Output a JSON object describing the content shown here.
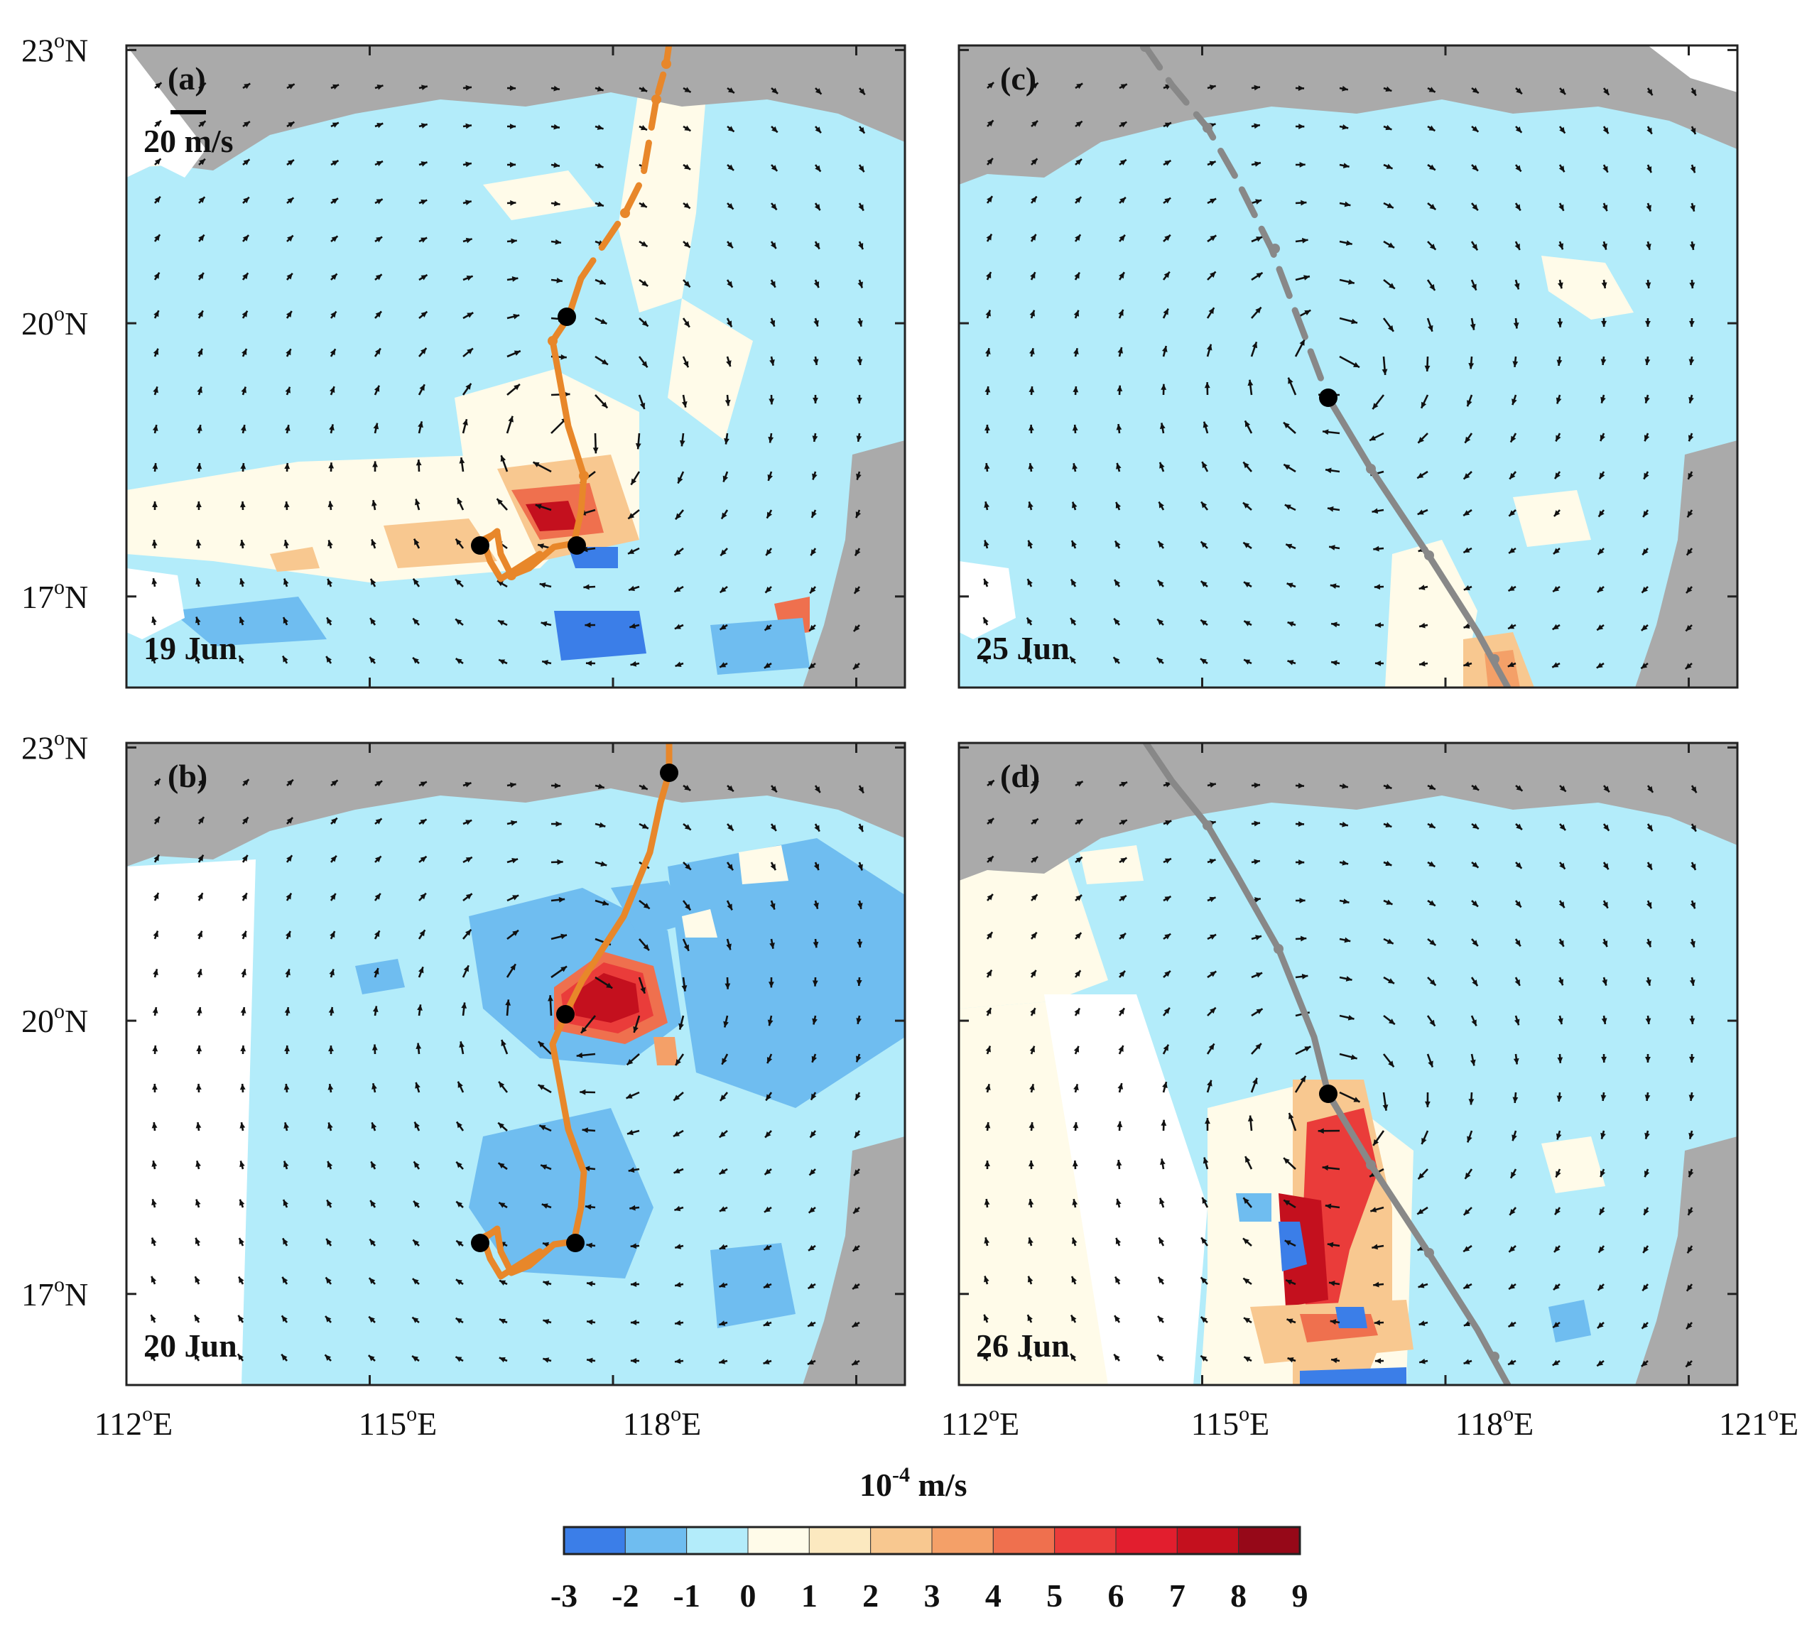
{
  "figure": {
    "panels": [
      {
        "id": "a",
        "label": "(a)",
        "date": "19 Jun",
        "scale_label": "20 m/s",
        "track_color": "#e8872a",
        "track_style": "orange"
      },
      {
        "id": "b",
        "label": "(b)",
        "date": "20 Jun",
        "track_color": "#e8872a",
        "track_style": "orange"
      },
      {
        "id": "c",
        "label": "(c)",
        "date": "25 Jun",
        "track_color": "#888888",
        "track_style": "gray"
      },
      {
        "id": "d",
        "label": "(d)",
        "date": "26 Jun",
        "track_color": "#888888",
        "track_style": "gray"
      }
    ],
    "lat_ticks": [
      {
        "value": 23,
        "base": "23",
        "sup": "o",
        "suffix": "N"
      },
      {
        "value": 20,
        "base": "20",
        "sup": "o",
        "suffix": "N"
      },
      {
        "value": 17,
        "base": "17",
        "sup": "o",
        "suffix": "N"
      }
    ],
    "lon_ticks_left": [
      {
        "value": 112,
        "base": "112",
        "sup": "o",
        "suffix": "E"
      },
      {
        "value": 115,
        "base": "115",
        "sup": "o",
        "suffix": "E"
      },
      {
        "value": 118,
        "base": "118",
        "sup": "o",
        "suffix": "E"
      }
    ],
    "lon_ticks_right": [
      {
        "value": 112,
        "base": "112",
        "sup": "o",
        "suffix": "E"
      },
      {
        "value": 115,
        "base": "115",
        "sup": "o",
        "suffix": "E"
      },
      {
        "value": 118,
        "base": "118",
        "sup": "o",
        "suffix": "E"
      },
      {
        "value": 121,
        "base": "121",
        "sup": "o",
        "suffix": "E"
      }
    ],
    "colorbar": {
      "unit_base": "10",
      "unit_exp": "-4",
      "unit_rest": " m/s",
      "ticks": [
        "-3",
        "-2",
        "-1",
        "0",
        "1",
        "2",
        "3",
        "4",
        "5",
        "6",
        "7",
        "8",
        "9"
      ],
      "colors": [
        "#3b7ee8",
        "#6fbdf0",
        "#b3ecfa",
        "#fffbe9",
        "#fce9c0",
        "#f8c890",
        "#f4a068",
        "#ef704e",
        "#ea3c3a",
        "#e21e2e",
        "#c4101e",
        "#960818"
      ]
    },
    "colors": {
      "land": "#aaaaaa",
      "ocean_base": "#b3ecfa",
      "frame": "#222222",
      "arrow": "#111111"
    }
  }
}
